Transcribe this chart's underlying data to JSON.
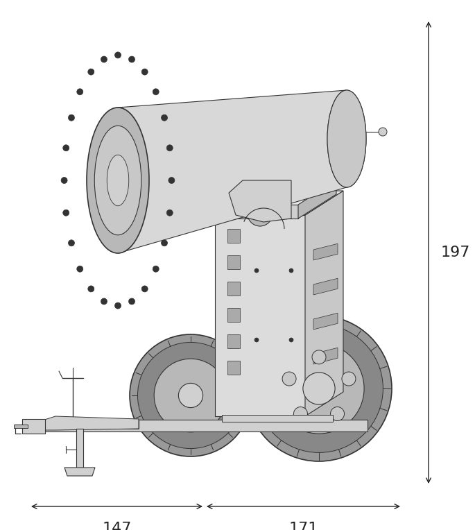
{
  "bg_color": "#ffffff",
  "line_color": "#333333",
  "dim_color": "#222222",
  "fill_light": "#e8e8e8",
  "fill_mid": "#d0d0d0",
  "fill_dark": "#b8b8b8",
  "fill_tire": "#888888",
  "figsize": [
    6.85,
    7.64
  ],
  "dpi": 100,
  "font_size_dim": 16,
  "lw_main": 0.8,
  "lw_dim": 1.0
}
